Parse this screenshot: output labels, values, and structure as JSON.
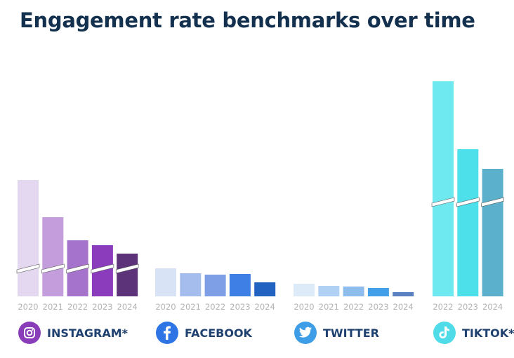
{
  "chart_data": {
    "type": "bar",
    "title": "Engagement rate benchmarks over time",
    "xlabel": "",
    "ylabel": "",
    "grid": false,
    "axis_break": true,
    "groups": [
      {
        "name": "INSTAGRAM*",
        "icon": "instagram-icon",
        "icon_color": "#8a3db8",
        "categories": [
          "2020",
          "2021",
          "2022",
          "2023",
          "2024"
        ],
        "values": [
          166,
          113,
          80,
          73,
          61
        ],
        "colors": [
          "#e4d7f0",
          "#c39ddc",
          "#a573cb",
          "#8b3cbc",
          "#5c3379"
        ]
      },
      {
        "name": "FACEBOOK",
        "icon": "facebook-icon",
        "icon_color": "#2f74e4",
        "categories": [
          "2020",
          "2021",
          "2022",
          "2023",
          "2024"
        ],
        "values": [
          40,
          33,
          31,
          32,
          20
        ],
        "colors": [
          "#d9e3f6",
          "#a5bdec",
          "#7e9fe6",
          "#3e7fe6",
          "#2262c0"
        ]
      },
      {
        "name": "TWITTER",
        "icon": "twitter-icon",
        "icon_color": "#3d9de6",
        "categories": [
          "2020",
          "2021",
          "2022",
          "2023",
          "2024"
        ],
        "values": [
          18,
          15,
          14,
          12,
          6
        ],
        "colors": [
          "#ddeaf8",
          "#b0d1f3",
          "#8ebcec",
          "#43a0e8",
          "#5a80c0"
        ]
      },
      {
        "name": "TIKTOK**",
        "icon": "tiktok-icon",
        "icon_color": "#4fdbe8",
        "categories": [
          "2022",
          "2023",
          "2024"
        ],
        "values": [
          307,
          210,
          182
        ],
        "colors": [
          "#6fe9f0",
          "#4ee0ea",
          "#5bb0cc"
        ]
      }
    ]
  }
}
